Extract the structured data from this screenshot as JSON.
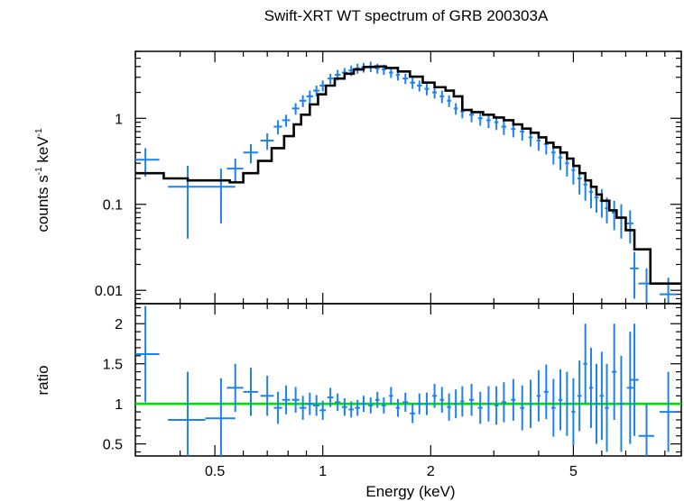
{
  "chart_data": [
    {
      "type": "scatter",
      "panel": "spectrum",
      "title": "Swift-XRT WT spectrum of GRB 200303A",
      "ylabel_main": "counts s",
      "ylabel_sup1": "-1",
      "ylabel_mid": " keV",
      "ylabel_sup2": "-1",
      "x_scale": "log",
      "y_scale": "log",
      "xlim": [
        0.3,
        10
      ],
      "ylim": [
        0.007,
        6
      ],
      "y_tick_values": [
        0.01,
        0.1,
        1
      ],
      "y_tick_labels": [
        "0.01",
        "0.1",
        "1"
      ],
      "data_color": "#1e82eb",
      "model_color": "#000000",
      "series": [
        {
          "name": "",
          "kind": "data",
          "x": [
            0.32,
            0.42,
            0.52,
            0.57,
            0.63,
            0.7,
            0.75,
            0.79,
            0.84,
            0.88,
            0.92,
            0.96,
            1.0,
            1.05,
            1.1,
            1.15,
            1.2,
            1.25,
            1.3,
            1.36,
            1.42,
            1.48,
            1.55,
            1.62,
            1.7,
            1.78,
            1.86,
            1.95,
            2.05,
            2.15,
            2.25,
            2.35,
            2.45,
            2.6,
            2.75,
            2.9,
            3.05,
            3.2,
            3.4,
            3.6,
            3.8,
            4.0,
            4.2,
            4.4,
            4.6,
            4.8,
            5.0,
            5.2,
            5.4,
            5.6,
            5.8,
            6.0,
            6.2,
            6.5,
            6.8,
            7.2,
            7.4,
            8.0,
            9.2
          ],
          "xerr": [
            0.03,
            0.05,
            0.05,
            0.03,
            0.03,
            0.03,
            0.02,
            0.02,
            0.02,
            0.02,
            0.02,
            0.02,
            0.02,
            0.02,
            0.02,
            0.02,
            0.02,
            0.02,
            0.02,
            0.02,
            0.02,
            0.02,
            0.02,
            0.02,
            0.03,
            0.03,
            0.03,
            0.03,
            0.03,
            0.03,
            0.03,
            0.03,
            0.03,
            0.04,
            0.04,
            0.04,
            0.04,
            0.05,
            0.05,
            0.05,
            0.05,
            0.05,
            0.06,
            0.06,
            0.06,
            0.06,
            0.06,
            0.07,
            0.07,
            0.07,
            0.08,
            0.08,
            0.08,
            0.1,
            0.1,
            0.15,
            0.2,
            0.4,
            0.5
          ],
          "y": [
            0.33,
            0.16,
            0.16,
            0.26,
            0.4,
            0.55,
            0.8,
            0.95,
            1.3,
            1.6,
            1.8,
            2.1,
            2.4,
            2.9,
            3.2,
            3.4,
            3.6,
            3.8,
            3.9,
            4.0,
            3.8,
            3.7,
            3.4,
            3.2,
            2.9,
            2.6,
            2.4,
            2.2,
            2.0,
            1.8,
            1.6,
            1.3,
            1.2,
            1.1,
            1.0,
            0.95,
            0.9,
            0.8,
            0.75,
            0.7,
            0.6,
            0.55,
            0.5,
            0.4,
            0.35,
            0.3,
            0.25,
            0.2,
            0.17,
            0.14,
            0.12,
            0.11,
            0.09,
            0.08,
            0.07,
            0.06,
            0.018,
            0.012,
            0.009
          ],
          "yerr": [
            0.12,
            0.12,
            0.1,
            0.08,
            0.1,
            0.12,
            0.15,
            0.15,
            0.2,
            0.25,
            0.3,
            0.3,
            0.35,
            0.4,
            0.45,
            0.45,
            0.5,
            0.5,
            0.5,
            0.55,
            0.5,
            0.5,
            0.45,
            0.45,
            0.4,
            0.4,
            0.35,
            0.35,
            0.3,
            0.3,
            0.25,
            0.2,
            0.2,
            0.2,
            0.18,
            0.18,
            0.17,
            0.16,
            0.15,
            0.15,
            0.13,
            0.13,
            0.12,
            0.11,
            0.1,
            0.09,
            0.08,
            0.07,
            0.06,
            0.05,
            0.04,
            0.04,
            0.03,
            0.03,
            0.03,
            0.025,
            0.01,
            0.006,
            0.005
          ]
        },
        {
          "name": "",
          "kind": "model",
          "x": [
            0.3,
            0.33,
            0.36,
            0.42,
            0.48,
            0.55,
            0.6,
            0.66,
            0.72,
            0.78,
            0.83,
            0.87,
            0.92,
            0.97,
            1.02,
            1.08,
            1.15,
            1.22,
            1.3,
            1.4,
            1.5,
            1.62,
            1.75,
            1.9,
            2.05,
            2.2,
            2.32,
            2.45,
            2.6,
            2.8,
            3.0,
            3.2,
            3.4,
            3.6,
            3.8,
            4.0,
            4.2,
            4.4,
            4.6,
            4.8,
            5.0,
            5.2,
            5.4,
            5.6,
            5.8,
            6.0,
            6.3,
            6.6,
            7.0,
            7.4,
            8.2,
            9.0,
            10.0
          ],
          "y": [
            0.23,
            0.23,
            0.2,
            0.19,
            0.19,
            0.18,
            0.23,
            0.32,
            0.45,
            0.62,
            0.85,
            1.1,
            1.45,
            1.9,
            2.4,
            2.9,
            3.3,
            3.7,
            3.95,
            4.0,
            3.85,
            3.5,
            3.05,
            2.6,
            2.3,
            2.1,
            1.8,
            1.25,
            1.18,
            1.1,
            1.02,
            0.95,
            0.85,
            0.76,
            0.68,
            0.6,
            0.52,
            0.46,
            0.4,
            0.34,
            0.28,
            0.23,
            0.19,
            0.16,
            0.13,
            0.11,
            0.085,
            0.07,
            0.05,
            0.03,
            0.012,
            0.012,
            0.012
          ]
        }
      ]
    },
    {
      "type": "scatter",
      "panel": "ratio",
      "xlabel": "Energy (keV)",
      "ylabel": "ratio",
      "x_scale": "log",
      "y_scale": "linear",
      "xlim": [
        0.3,
        10
      ],
      "ylim": [
        0.35,
        2.25
      ],
      "x_tick_values": [
        0.5,
        1,
        2,
        5
      ],
      "x_tick_labels": [
        "0.5",
        "1",
        "2",
        "5"
      ],
      "y_tick_values": [
        0.5,
        1,
        1.5,
        2
      ],
      "y_tick_labels": [
        "0.5",
        "1",
        "1.5",
        "2"
      ],
      "reference_line": 1,
      "reference_color": "#00e000",
      "data_color": "#1e82eb",
      "series": [
        {
          "name": "",
          "x": [
            0.32,
            0.42,
            0.52,
            0.57,
            0.63,
            0.7,
            0.75,
            0.79,
            0.84,
            0.88,
            0.92,
            0.96,
            1.0,
            1.05,
            1.1,
            1.15,
            1.2,
            1.25,
            1.3,
            1.36,
            1.42,
            1.48,
            1.55,
            1.62,
            1.7,
            1.78,
            1.86,
            1.95,
            2.05,
            2.15,
            2.25,
            2.35,
            2.45,
            2.6,
            2.75,
            2.9,
            3.05,
            3.2,
            3.4,
            3.6,
            3.8,
            4.0,
            4.2,
            4.4,
            4.6,
            4.8,
            5.0,
            5.2,
            5.4,
            5.6,
            5.8,
            6.0,
            6.2,
            6.5,
            6.8,
            7.2,
            7.4,
            8.0,
            9.2
          ],
          "xerr": [
            0.03,
            0.05,
            0.05,
            0.03,
            0.03,
            0.03,
            0.02,
            0.02,
            0.02,
            0.02,
            0.02,
            0.02,
            0.02,
            0.02,
            0.02,
            0.02,
            0.02,
            0.02,
            0.02,
            0.02,
            0.02,
            0.02,
            0.02,
            0.02,
            0.03,
            0.03,
            0.03,
            0.03,
            0.03,
            0.03,
            0.03,
            0.03,
            0.03,
            0.04,
            0.04,
            0.04,
            0.04,
            0.05,
            0.05,
            0.05,
            0.05,
            0.05,
            0.06,
            0.06,
            0.06,
            0.06,
            0.06,
            0.07,
            0.07,
            0.07,
            0.08,
            0.08,
            0.08,
            0.1,
            0.1,
            0.15,
            0.2,
            0.4,
            0.5
          ],
          "y": [
            1.62,
            0.8,
            0.82,
            1.2,
            1.15,
            1.1,
            0.95,
            1.05,
            1.05,
            0.95,
            1.0,
            0.98,
            0.92,
            1.08,
            1.02,
            0.96,
            0.93,
            0.95,
            1.0,
            0.98,
            1.05,
            0.98,
            1.1,
            0.95,
            1.02,
            0.88,
            1.0,
            1.0,
            1.1,
            1.05,
            0.96,
            1.0,
            1.03,
            1.05,
            0.95,
            1.0,
            0.98,
            1.02,
            1.05,
            0.95,
            1.0,
            1.1,
            1.15,
            0.95,
            1.05,
            1.0,
            0.9,
            1.1,
            1.5,
            1.2,
            1.0,
            1.1,
            0.95,
            1.4,
            1.0,
            1.2,
            1.3,
            0.6,
            0.9
          ],
          "yerr": [
            0.6,
            0.6,
            0.5,
            0.3,
            0.3,
            0.25,
            0.2,
            0.18,
            0.16,
            0.15,
            0.14,
            0.13,
            0.12,
            0.12,
            0.11,
            0.11,
            0.1,
            0.1,
            0.1,
            0.1,
            0.1,
            0.1,
            0.11,
            0.11,
            0.12,
            0.12,
            0.13,
            0.14,
            0.15,
            0.16,
            0.17,
            0.18,
            0.19,
            0.2,
            0.2,
            0.22,
            0.24,
            0.25,
            0.26,
            0.28,
            0.3,
            0.32,
            0.34,
            0.36,
            0.38,
            0.4,
            0.42,
            0.44,
            0.5,
            0.5,
            0.5,
            0.55,
            0.55,
            0.6,
            0.6,
            0.7,
            0.7,
            0.4,
            0.5
          ]
        }
      ]
    }
  ]
}
